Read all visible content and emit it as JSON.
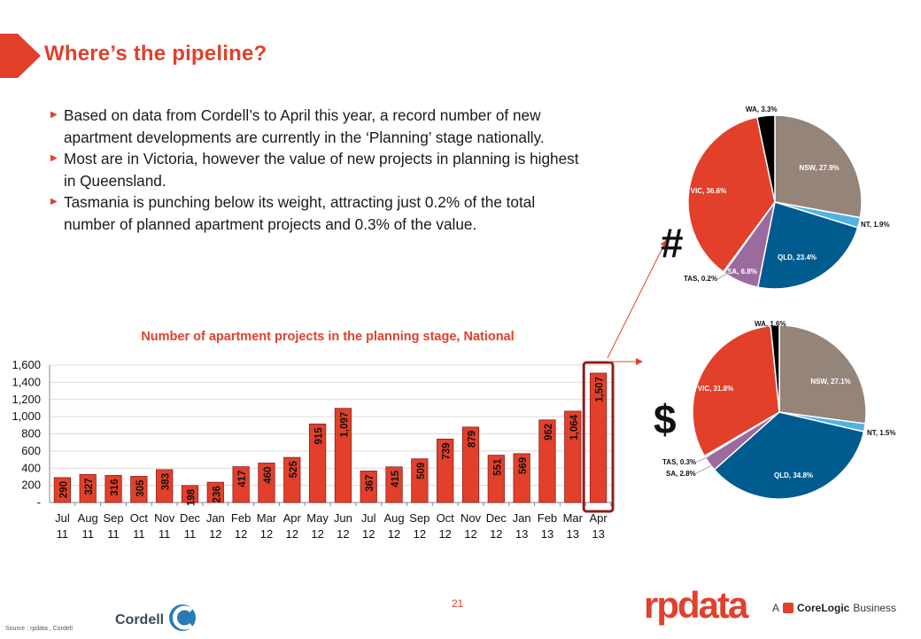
{
  "title": "Where’s the pipeline?",
  "bullets": [
    "Based on data from Cordell’s to April this year, a record number of new apartment developments are currently in the ‘Planning’ stage nationally.",
    "Most are in Victoria, however the value of new projects in planning is highest in Queensland.",
    "Tasmania is punching below its weight, attracting just 0.2% of the total number of planned apartment projects and 0.3% of the value."
  ],
  "page_number": "21",
  "source": "Source : rpdata , Cordell",
  "logos": {
    "cordell": "Cordell",
    "rpdata": "rpdata",
    "corelogic_prefix": "A",
    "corelogic_name": "CoreLogic",
    "corelogic_suffix": "Business"
  },
  "pie_symbols": {
    "count": "#",
    "value": "$"
  },
  "colors": {
    "accent": "#e2402b",
    "bar": "#e2402b",
    "highlight_box": "#8b2020",
    "NSW": "#958478",
    "NT": "#4fb3e3",
    "QLD": "#005b8f",
    "SA": "#9c6b9e",
    "TAS": "#b9c3d6",
    "VIC": "#e2402b",
    "WA": "#000000"
  },
  "chart_data": [
    {
      "type": "bar",
      "title": "Number of apartment projects in the planning stage, National",
      "categories": [
        "Jul 11",
        "Aug 11",
        "Sep 11",
        "Oct 11",
        "Nov 11",
        "Dec 11",
        "Jan 12",
        "Feb 12",
        "Mar 12",
        "Apr 12",
        "May 12",
        "Jun 12",
        "Jul 12",
        "Aug 12",
        "Sep 12",
        "Oct 12",
        "Nov 12",
        "Dec 12",
        "Jan 13",
        "Feb 13",
        "Mar 13",
        "Apr 13"
      ],
      "values": [
        290,
        327,
        316,
        305,
        383,
        198,
        236,
        417,
        460,
        525,
        915,
        1097,
        367,
        415,
        509,
        739,
        879,
        551,
        569,
        962,
        1064,
        1507
      ],
      "data_labels": [
        "290",
        "327",
        "316",
        "305",
        "383",
        "198",
        "236",
        "417",
        "460",
        "525",
        "915",
        "1,097",
        "367",
        "415",
        "509",
        "739",
        "879",
        "551",
        "569",
        "962",
        "1,064",
        "1,507"
      ],
      "y_ticks": [
        "-",
        "200",
        "400",
        "600",
        "800",
        "1,000",
        "1,200",
        "1,400",
        "1,600"
      ],
      "ylim": [
        0,
        1600
      ],
      "grid": true,
      "highlight": "Apr 13"
    },
    {
      "type": "pie",
      "name": "#",
      "slices": [
        {
          "label": "NSW",
          "value": 27.9,
          "text": "NSW, 27.9%"
        },
        {
          "label": "NT",
          "value": 1.9,
          "text": "NT, 1.9%"
        },
        {
          "label": "QLD",
          "value": 23.4,
          "text": "QLD, 23.4%"
        },
        {
          "label": "SA",
          "value": 6.8,
          "text": "SA, 6.8%"
        },
        {
          "label": "TAS",
          "value": 0.2,
          "text": "TAS, 0.2%"
        },
        {
          "label": "VIC",
          "value": 36.6,
          "text": "VIC, 36.6%"
        },
        {
          "label": "WA",
          "value": 3.3,
          "text": "WA, 3.3%"
        }
      ]
    },
    {
      "type": "pie",
      "name": "$",
      "slices": [
        {
          "label": "NSW",
          "value": 27.1,
          "text": "NSW, 27.1%"
        },
        {
          "label": "NT",
          "value": 1.5,
          "text": "NT, 1.5%"
        },
        {
          "label": "QLD",
          "value": 34.8,
          "text": "QLD, 34.8%"
        },
        {
          "label": "SA",
          "value": 2.8,
          "text": "SA, 2.8%"
        },
        {
          "label": "TAS",
          "value": 0.3,
          "text": "TAS, 0.3%"
        },
        {
          "label": "VIC",
          "value": 31.8,
          "text": "VIC, 31.8%"
        },
        {
          "label": "WA",
          "value": 1.6,
          "text": "WA, 1.6%"
        }
      ]
    }
  ]
}
